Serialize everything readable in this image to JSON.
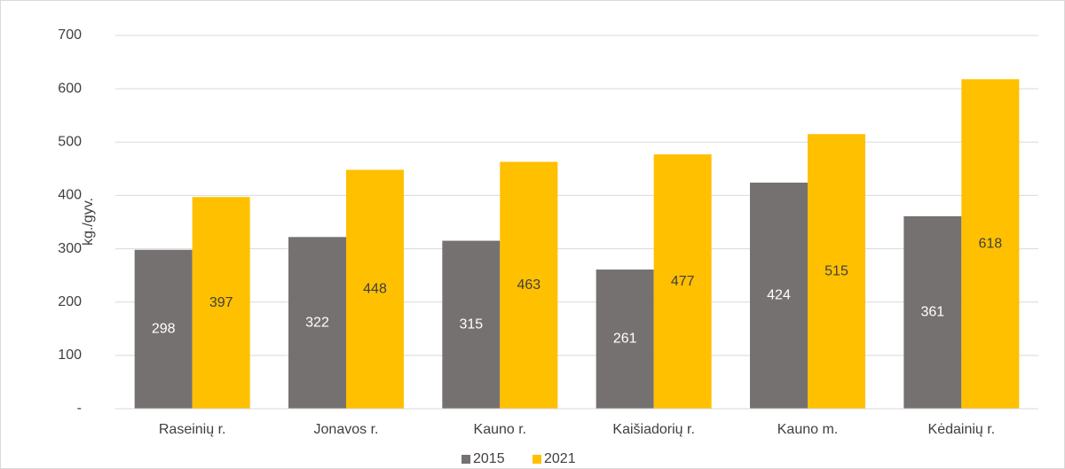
{
  "chart_data": {
    "type": "bar",
    "y_label": "kg./gyv.",
    "categories": [
      "Raseinių r.",
      "Jonavos r.",
      "Kauno r.",
      "Kaišiadorių r.",
      "Kauno m.",
      "Kėdainių r."
    ],
    "series": [
      {
        "name": "2015",
        "color": "#767171",
        "values": [
          298,
          322,
          315,
          261,
          424,
          361
        ]
      },
      {
        "name": "2021",
        "color": "#FFC000",
        "values": [
          397,
          448,
          463,
          477,
          515,
          618
        ]
      }
    ],
    "ylim": [
      0,
      700
    ],
    "yticks": [
      {
        "value": 0,
        "label": "-"
      },
      100,
      200,
      300,
      400,
      500,
      600,
      700
    ],
    "grid": true,
    "legend": "bottom"
  }
}
